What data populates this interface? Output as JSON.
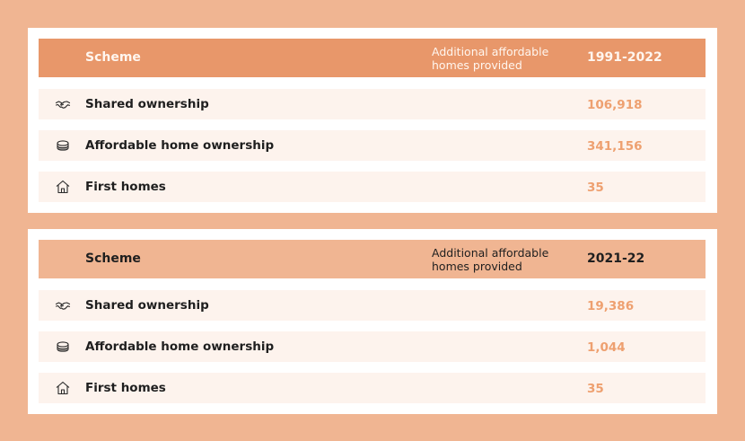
{
  "colors": {
    "page_background": "#f0b592",
    "header_dark": "#e8976a",
    "header_light": "#f0b592",
    "row_background": "#fdf3ed",
    "value_color": "#eea070",
    "text_dark": "#1f1f1f"
  },
  "tables": [
    {
      "header": {
        "scheme": "Scheme",
        "additional": "Additional affordable homes provided",
        "period": "1991-2022"
      },
      "rows": [
        {
          "icon": "handshake-icon",
          "scheme": "Shared ownership",
          "value": "106,918"
        },
        {
          "icon": "coins-icon",
          "scheme": "Affordable home ownership",
          "value": "341,156"
        },
        {
          "icon": "house-icon",
          "scheme": "First homes",
          "value": "35"
        }
      ]
    },
    {
      "header": {
        "scheme": "Scheme",
        "additional": "Additional affordable homes provided",
        "period": "2021-22"
      },
      "rows": [
        {
          "icon": "handshake-icon",
          "scheme": "Shared ownership",
          "value": "19,386"
        },
        {
          "icon": "coins-icon",
          "scheme": "Affordable home ownership",
          "value": "1,044"
        },
        {
          "icon": "house-icon",
          "scheme": "First homes",
          "value": "35"
        }
      ]
    }
  ]
}
